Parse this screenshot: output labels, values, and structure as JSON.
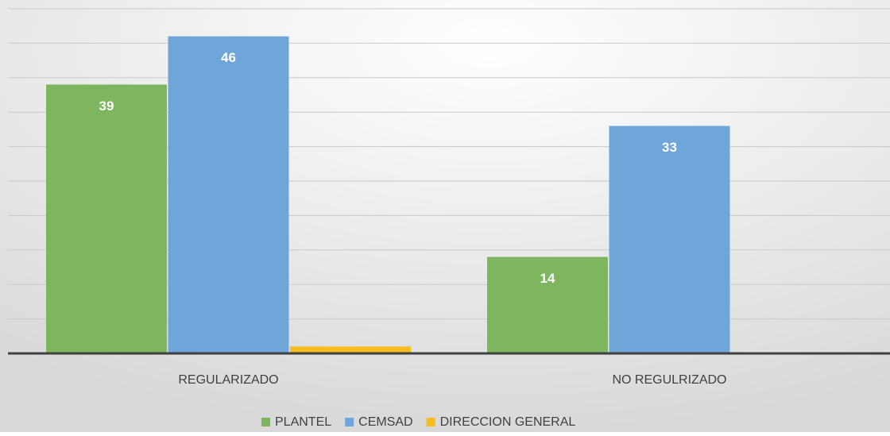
{
  "chart_data": {
    "type": "bar",
    "categories": [
      "REGULARIZADO",
      "NO REGULRIZADO"
    ],
    "series": [
      {
        "name": "PLANTEL",
        "color": "#7db65f",
        "values": [
          39,
          14
        ],
        "value_labels": [
          "39",
          "14"
        ]
      },
      {
        "name": "CEMSAD",
        "color": "#6fa6d9",
        "values": [
          46,
          33
        ],
        "value_labels": [
          "46",
          "33"
        ]
      },
      {
        "name": "DIRECCION GENERAL",
        "color": "#f5bd1f",
        "values": [
          1,
          0
        ]
      }
    ],
    "ylim": [
      0,
      50
    ],
    "yticks": [
      0,
      5,
      10,
      15,
      20,
      25,
      30,
      35,
      40,
      45,
      50
    ],
    "grid": true
  }
}
